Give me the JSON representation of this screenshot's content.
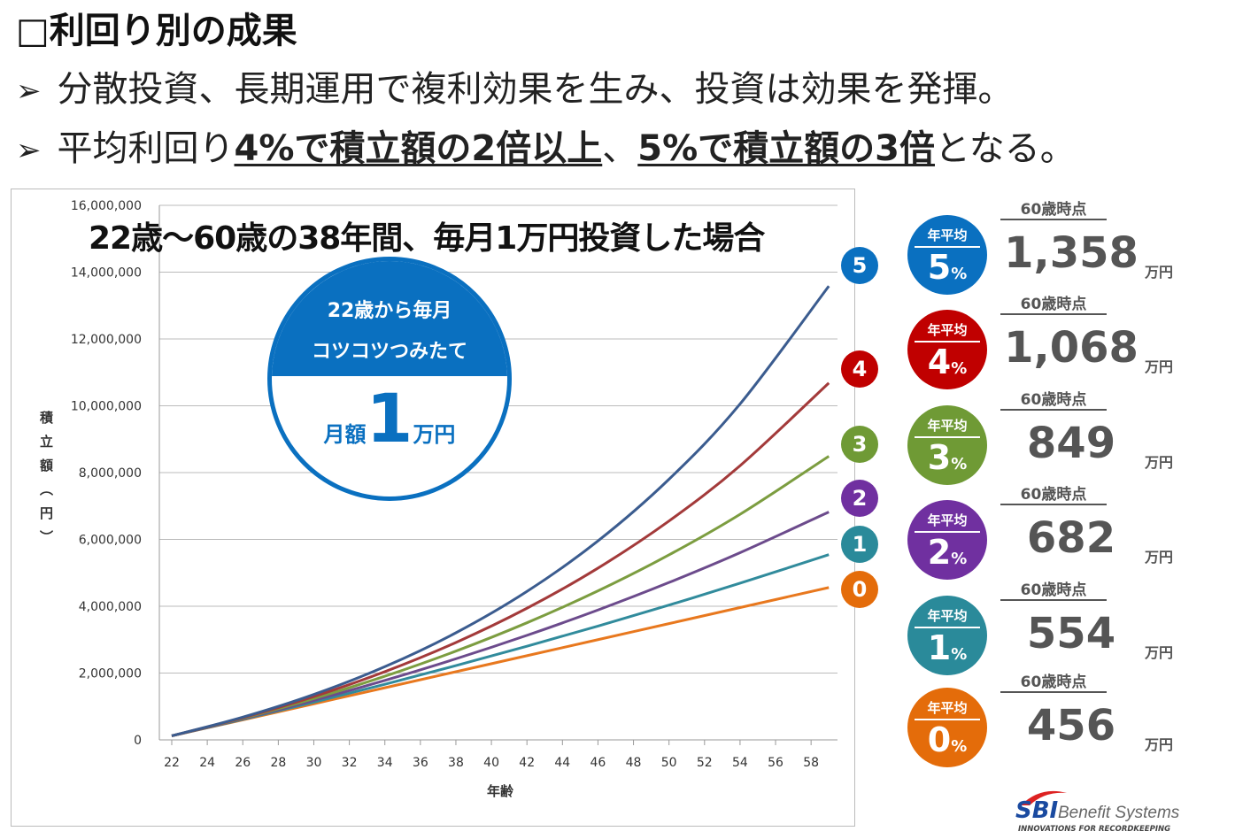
{
  "title": "□利回り別の成果",
  "bullets": [
    {
      "arrow": "➢",
      "parts": [
        {
          "text": "分散投資、長期運用で複利効果を生み、投資は効果を発揮。",
          "em": false
        }
      ]
    },
    {
      "arrow": "➢",
      "parts": [
        {
          "text": "平均利回り",
          "em": false
        },
        {
          "text": "4%で積立額の2倍以上",
          "em": true
        },
        {
          "text": "、",
          "em": false
        },
        {
          "text": "5%で積立額の3倍",
          "em": true
        },
        {
          "text": "となる。",
          "em": false
        }
      ]
    }
  ],
  "chart_title": "22歳～60歳の38年間、毎月1万円投資した場合",
  "bubble": {
    "line1": "22歳から毎月",
    "line2": "コツコツつみたて",
    "amount_prefix": "月額",
    "amount": "1",
    "amount_unit": "万円"
  },
  "chart_data": {
    "type": "line",
    "title": "",
    "xlabel": "年齢",
    "ylabel": "積立額（円）",
    "xlim": [
      21.4,
      60.5
    ],
    "ylim": [
      0,
      16000000
    ],
    "grid": true,
    "x_ticks": [
      "22",
      "24",
      "26",
      "28",
      "30",
      "32",
      "34",
      "36",
      "38",
      "40",
      "42",
      "44",
      "46",
      "48",
      "50",
      "52",
      "54",
      "56",
      "58"
    ],
    "y_ticks": [
      "0",
      "2,000,000",
      "4,000,000",
      "6,000,000",
      "8,000,000",
      "10,000,000",
      "12,000,000",
      "14,000,000",
      "16,000,000"
    ],
    "x": [
      22,
      26,
      30,
      34,
      38,
      42,
      46,
      50,
      54,
      59
    ],
    "series": [
      {
        "name": "5",
        "color": "#3b5c8f",
        "label_color": "#0a70c0",
        "values": [
          122800,
          680100,
          1360000,
          2191000,
          3205000,
          4443000,
          5955000,
          7801000,
          10054000,
          13582000
        ]
      },
      {
        "name": "4",
        "color": "#a33a3a",
        "label_color": "#c00000",
        "values": [
          122200,
          663000,
          1297000,
          2042000,
          2915000,
          3940000,
          5141000,
          6551000,
          8206000,
          10682000
        ]
      },
      {
        "name": "3",
        "color": "#7c9d40",
        "label_color": "#6f9a35",
        "values": [
          121700,
          646500,
          1238000,
          1905000,
          2657000,
          3505000,
          4460000,
          5537000,
          6752000,
          8489000
        ]
      },
      {
        "name": "2",
        "color": "#6c4b8c",
        "label_color": "#7030a0",
        "values": [
          121100,
          630500,
          1182000,
          1780000,
          2427000,
          3129000,
          3888000,
          4711000,
          5603000,
          6822000
        ]
      },
      {
        "name": "1",
        "color": "#318b9c",
        "label_color": "#2a8a9a",
        "values": [
          120550,
          615000,
          1129600,
          1665000,
          2223000,
          2803000,
          3407000,
          4035000,
          4689000,
          5544000
        ]
      },
      {
        "name": "0",
        "color": "#e8781e",
        "label_color": "#e46c0a",
        "values": [
          120000,
          600000,
          1080000,
          1560000,
          2040000,
          2520000,
          3000000,
          3480000,
          3960000,
          4560000
        ]
      }
    ]
  },
  "results": [
    {
      "label": "年平均",
      "rate": "5",
      "pct": "%",
      "at": "60歳時点",
      "value": "1,358",
      "unit": "万円",
      "color": "#0a70c0"
    },
    {
      "label": "年平均",
      "rate": "4",
      "pct": "%",
      "at": "60歳時点",
      "value": "1,068",
      "unit": "万円",
      "color": "#c00000"
    },
    {
      "label": "年平均",
      "rate": "3",
      "pct": "%",
      "at": "60歳時点",
      "value": "849",
      "unit": "万円",
      "color": "#6f9a35"
    },
    {
      "label": "年平均",
      "rate": "2",
      "pct": "%",
      "at": "60歳時点",
      "value": "682",
      "unit": "万円",
      "color": "#7030a0"
    },
    {
      "label": "年平均",
      "rate": "1",
      "pct": "%",
      "at": "60歳時点",
      "value": "554",
      "unit": "万円",
      "color": "#2a8a9a"
    },
    {
      "label": "年平均",
      "rate": "0",
      "pct": "%",
      "at": "60歳時点",
      "value": "456",
      "unit": "万円",
      "color": "#e46c0a"
    }
  ],
  "logo": {
    "brand": "SBI",
    "name": "Benefit Systems",
    "tagline": "INNOVATIONS FOR RECORDKEEPING"
  }
}
